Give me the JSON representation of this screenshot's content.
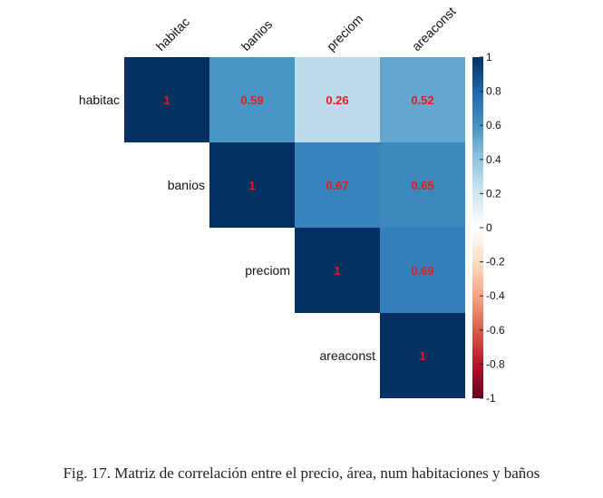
{
  "caption": "Fig. 17.  Matriz de correlación entre el precio, área, num habitaciones y baños",
  "chart_data": {
    "type": "heatmap",
    "variables": [
      "habitac",
      "banios",
      "preciom",
      "areaconst"
    ],
    "layout": "upper-triangle",
    "matrix": [
      [
        1,
        0.59,
        0.26,
        0.52
      ],
      [
        null,
        1,
        0.67,
        0.65
      ],
      [
        null,
        null,
        1,
        0.69
      ],
      [
        null,
        null,
        null,
        1
      ]
    ],
    "cell_labels": [
      [
        "1",
        "0.59",
        "0.26",
        "0.52"
      ],
      [
        null,
        "1",
        "0.67",
        "0.65"
      ],
      [
        null,
        null,
        "1",
        "0.69"
      ],
      [
        null,
        null,
        null,
        "1"
      ]
    ],
    "colorbar": {
      "ticks": [
        "1",
        "0.8",
        "0.6",
        "0.4",
        "0.2",
        "0",
        "-0.2",
        "-0.4",
        "-0.6",
        "-0.8",
        "-1"
      ],
      "range": [
        -1,
        1
      ]
    },
    "colors": {
      "value_label": "#e8181c",
      "scale": [
        "#67001f",
        "#b2182b",
        "#d6604d",
        "#f4a582",
        "#fddbc7",
        "#ffffff",
        "#d1e5f0",
        "#92c5de",
        "#4393c3",
        "#2166ac",
        "#053061"
      ]
    }
  }
}
